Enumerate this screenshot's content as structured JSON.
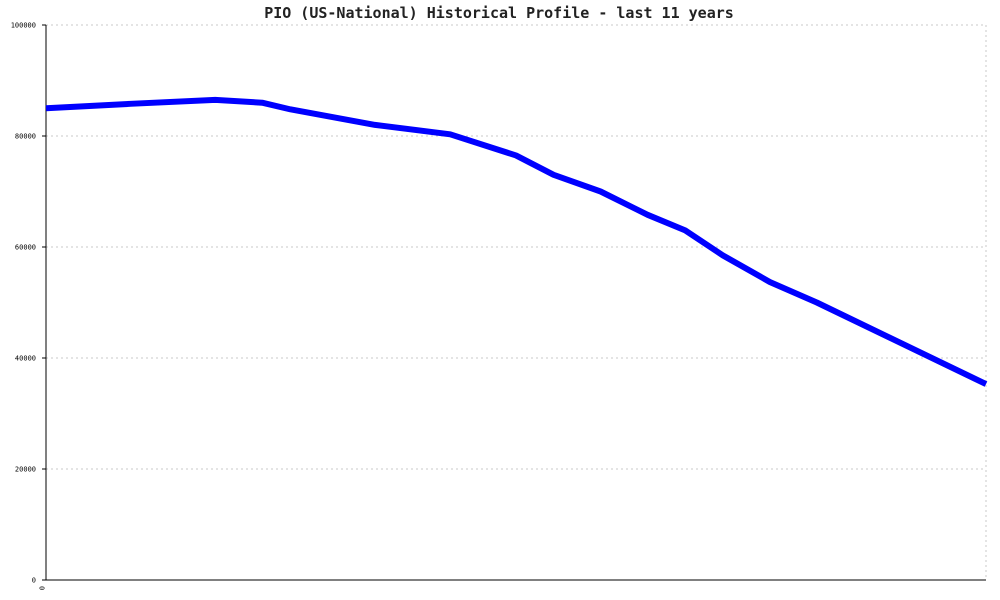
{
  "chart_data": {
    "type": "line",
    "title": "PIO (US-National) Historical Profile - last 11 years",
    "xlabel": "",
    "ylabel": "",
    "ylim": [
      0,
      100000
    ],
    "xlim": [
      0,
      1
    ],
    "y_ticks": [
      0,
      20000,
      40000,
      60000,
      80000,
      100000
    ],
    "y_tick_labels": [
      "0",
      "20000",
      "40000",
      "60000",
      "80000",
      "100000"
    ],
    "x_tick_labels": [
      "0"
    ],
    "grid": true,
    "legend": "none",
    "series": [
      {
        "color": "#0000ff",
        "x": [
          0.0,
          0.09,
          0.18,
          0.23,
          0.26,
          0.35,
          0.43,
          0.5,
          0.54,
          0.59,
          0.64,
          0.68,
          0.72,
          0.77,
          0.82,
          1.0
        ],
        "values": [
          85000,
          85800,
          86500,
          86000,
          84800,
          82000,
          80300,
          76500,
          73000,
          70000,
          65800,
          63000,
          58500,
          53700,
          50000,
          35300
        ]
      }
    ]
  }
}
